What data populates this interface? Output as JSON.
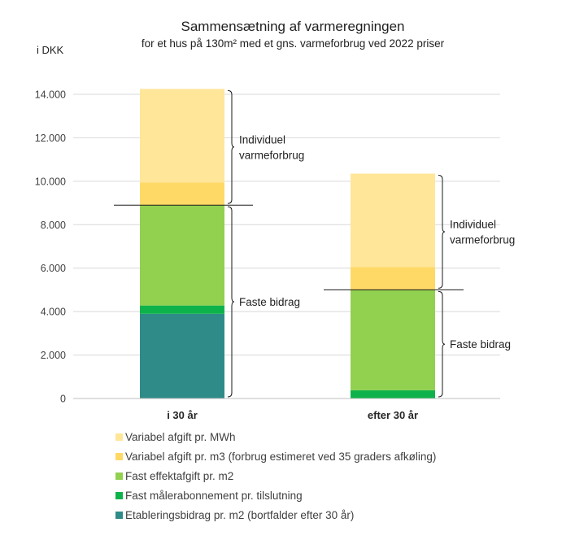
{
  "chart_data": {
    "type": "bar",
    "stacked": true,
    "title": "Sammensætning af varmeregningen",
    "subtitle": "for et hus på 130m² med et gns. varmeforbrug ved 2022 priser",
    "y_unit_label": "i DKK",
    "ylim": [
      0,
      14000
    ],
    "y_ticks": [
      "0",
      "2.000",
      "4.000",
      "6.000",
      "8.000",
      "10.000",
      "12.000",
      "14.000"
    ],
    "grid": true,
    "legend_position": "bottom",
    "categories": [
      "i 30 år",
      "efter 30 år"
    ],
    "series": [
      {
        "name": "Etableringsbidrag pr. m2 (bortfalder efter 30 år)",
        "color": "#2e8b88",
        "values": [
          3900,
          0
        ]
      },
      {
        "name": "Fast målerabonnement pr. tilslutning",
        "color": "#0db34a",
        "values": [
          380,
          380
        ]
      },
      {
        "name": "Fast effektafgift pr. m2",
        "color": "#92d050",
        "values": [
          4620,
          4620
        ]
      },
      {
        "name": "Variabel afgift pr. m3 (forbrug estimeret ved 35 graders afkøling)",
        "color": "#ffd966",
        "values": [
          1050,
          1050
        ]
      },
      {
        "name": "Variabel afgift pr. MWh",
        "color": "#ffe699",
        "values": [
          4300,
          4300
        ]
      }
    ],
    "legend_order": [
      4,
      3,
      2,
      1,
      0
    ],
    "annotations": [
      {
        "category_index": 0,
        "text_lines": [
          "Individuel",
          "varmeforbrug"
        ],
        "range": [
          8900,
          14250
        ]
      },
      {
        "category_index": 0,
        "text_lines": [
          "Faste bidrag"
        ],
        "range": [
          0,
          8900
        ]
      },
      {
        "category_index": 1,
        "text_lines": [
          "Individuel",
          "varmeforbrug"
        ],
        "range": [
          5000,
          10350
        ]
      },
      {
        "category_index": 1,
        "text_lines": [
          "Faste bidrag"
        ],
        "range": [
          0,
          5000
        ]
      }
    ],
    "separator_values": [
      8900,
      5000
    ]
  }
}
